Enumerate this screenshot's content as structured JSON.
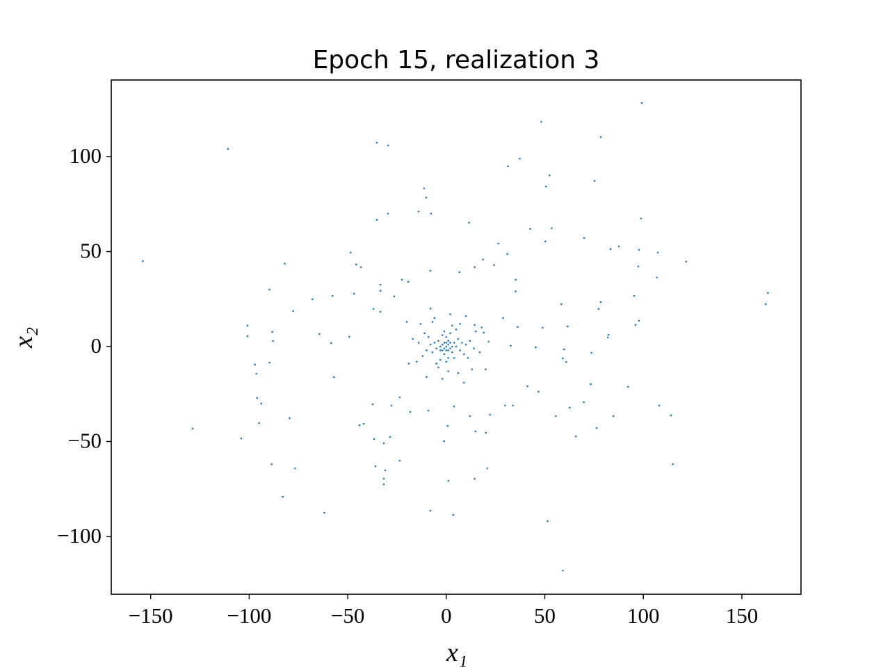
{
  "chart_data": {
    "type": "scatter",
    "title": "Epoch 15, realization 3",
    "x_label": "x₁",
    "y_label": "x₂",
    "color": "#1f77b4",
    "xlim": [
      -170,
      180
    ],
    "ylim": [
      -130.4,
      140.3
    ],
    "xticks": [
      {
        "value": -150,
        "label": "−150"
      },
      {
        "value": -100,
        "label": "−100"
      },
      {
        "value": -50,
        "label": "−50"
      },
      0,
      50,
      100,
      150
    ],
    "yticks": [
      {
        "value": -100,
        "label": "−100"
      },
      {
        "value": -50,
        "label": "−50"
      },
      0,
      50,
      100
    ],
    "x": [
      -110.8,
      -154,
      -128.7,
      -35.2,
      -29.5,
      48.2,
      99.2,
      78.4,
      37.3,
      31.3,
      52.4,
      50.6,
      75.3,
      -11.3,
      -10.2,
      -14.1,
      -7.7,
      -29.5,
      -35.2,
      11.6,
      98.8,
      42.6,
      53.5,
      50.3,
      70,
      26.4,
      83.4,
      87.6,
      97.8,
      107.3,
      121.7,
      97.4,
      106.9,
      -82,
      -48.5,
      -45.7,
      -43.3,
      -89.7,
      -67.9,
      -77.7,
      -100.9,
      -100.9,
      -88.3,
      -87.9,
      -89.7,
      -97.1,
      -96.4,
      -96,
      -93.9,
      -95,
      -79.5,
      -104.1,
      -88.6,
      -76.7,
      -83,
      -61.9,
      -35.9,
      -31,
      -31.7,
      -31.7,
      -23.6,
      -28.5,
      -31.7,
      -36.6,
      -8.1,
      3.5,
      1.1,
      -1.1,
      0.7,
      14.4,
      20.8,
      51.4,
      59.1,
      115,
      114,
      108,
      84.8,
      76.3,
      65.8,
      55.6,
      62.6,
      69.8,
      73.3,
      92.2,
      73.7,
      59.8,
      60.9,
      59.1,
      61.6,
      82,
      82.3,
      96,
      97.8,
      95.3,
      78.4,
      77.3,
      58.4,
      48.9,
      162.1,
      163.2,
      45.4,
      41.2,
      46.8,
      33.8,
      29.9,
      22.2,
      20.1,
      14.8,
      12,
      3.9,
      -9.1,
      -18.3,
      -23.6,
      -27.8,
      -37.3,
      -41.9,
      -44,
      -57,
      -58.4,
      -64.4,
      -57.7,
      -49.2,
      -46.8,
      -33.4,
      -33.4,
      -37,
      -33.4,
      -22.5,
      -19.3,
      -26.4,
      -8.1,
      6.7,
      18.6,
      24.3,
      14.4,
      35.2,
      35.2,
      31,
      28.8,
      36.2,
      32.7,
      21.5,
      14.4,
      19,
      0,
      -2,
      2,
      1,
      -3,
      4,
      -1,
      3,
      -4,
      5,
      -5,
      0,
      1,
      -6,
      6,
      -2,
      2,
      -7,
      7,
      -3,
      4,
      -8,
      8,
      0,
      -1,
      9,
      -9,
      5,
      -5,
      10,
      -10,
      3,
      -4,
      11,
      -11,
      12,
      -12,
      7,
      -7,
      1,
      14,
      -14,
      6,
      -6,
      15,
      -15,
      13,
      -13,
      2,
      -2,
      17,
      -17,
      10,
      -10,
      18,
      -19,
      9,
      -8,
      20,
      -20,
      1,
      -1,
      2,
      -2,
      3,
      -3,
      0,
      0,
      1,
      -1
    ],
    "values": [
      104,
      45,
      -43.2,
      107.3,
      105.9,
      118.3,
      128.2,
      110.3,
      98.9,
      94.9,
      90.1,
      84.2,
      87.2,
      83.2,
      78.4,
      71.1,
      70,
      70,
      66.7,
      65.2,
      67.4,
      61.9,
      62.3,
      55.3,
      57.1,
      54.2,
      51.3,
      52.7,
      50.9,
      49.5,
      44.7,
      42.1,
      36.3,
      43.6,
      49.5,
      43.2,
      41.8,
      30,
      24.9,
      18.7,
      11,
      5.5,
      7.7,
      2.9,
      -8.4,
      -9.5,
      -14.3,
      -27.1,
      -30,
      -40.3,
      -37.7,
      -48.4,
      -61.9,
      -64.1,
      -79.1,
      -87.5,
      -63,
      -65.2,
      -69.6,
      -72.5,
      -60.1,
      -47.6,
      -50.9,
      -48.7,
      -86.4,
      -88.6,
      -70.7,
      -49.8,
      -41.8,
      -69.6,
      -64.1,
      -91.9,
      -117.9,
      -61.9,
      -36.3,
      -31.1,
      -36.6,
      -42.9,
      -47.3,
      -36.6,
      -32.2,
      -29.3,
      -19.8,
      -21.2,
      -3.3,
      -1.5,
      -8.1,
      -6.2,
      10.6,
      4.8,
      6.2,
      11.4,
      13.6,
      26.7,
      23.4,
      19.8,
      22.3,
      9.9,
      22.3,
      28.2,
      -0.4,
      -20.9,
      -23.8,
      -31.1,
      -31.1,
      -35.9,
      -45.4,
      -44.7,
      -36.6,
      -31.5,
      -33.7,
      -34.4,
      -26.7,
      -31.1,
      -30.4,
      -40.7,
      -41.4,
      -16.1,
      1.8,
      6.6,
      26.7,
      5.1,
      27.8,
      32.6,
      29.3,
      19.8,
      18.3,
      35.2,
      34.1,
      26.4,
      39.9,
      39.2,
      45.8,
      42.9,
      41.8,
      35.2,
      29,
      48.7,
      15,
      10.3,
      0.4,
      2.6,
      11.4,
      7.3,
      0,
      1,
      -1,
      3,
      -2,
      2,
      -4,
      -3,
      3,
      0,
      -1,
      5,
      -6,
      2,
      4,
      6,
      7,
      -3,
      -2,
      -7,
      -6,
      1,
      2,
      -8,
      8,
      -4,
      5,
      9,
      -9,
      1,
      -2,
      11,
      -11,
      -6,
      7,
      3,
      -5,
      12,
      13,
      -13,
      -1,
      2,
      -14,
      15,
      8,
      -8,
      -12,
      12,
      17,
      -17,
      -3,
      4,
      16,
      -16,
      10,
      -9,
      -19,
      20,
      -12,
      13,
      1,
      -1,
      2,
      -2,
      0,
      0,
      2,
      -2,
      -2,
      2
    ]
  }
}
